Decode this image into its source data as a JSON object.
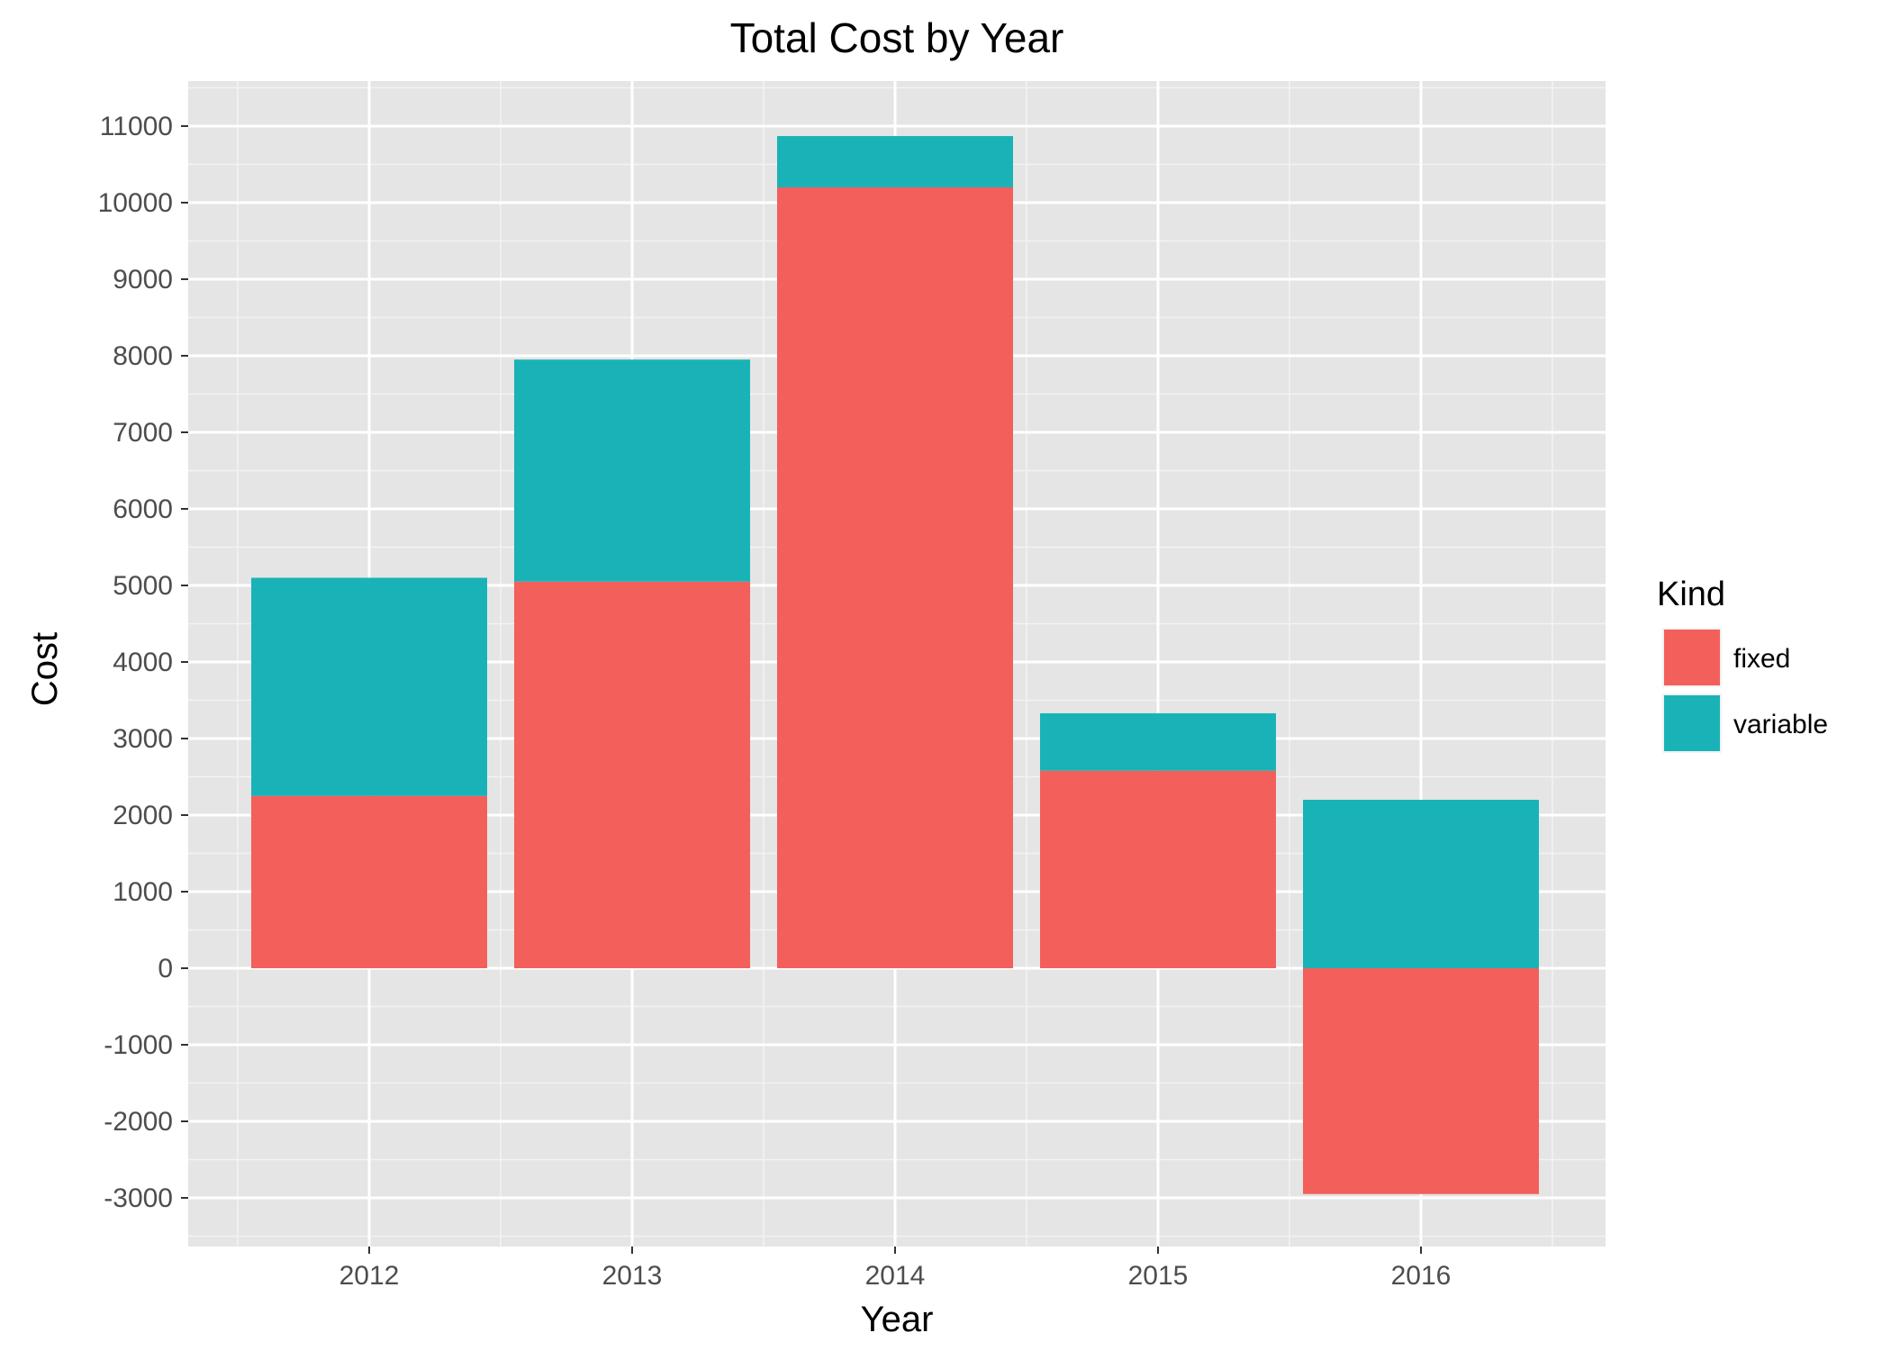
{
  "chart_data": {
    "type": "bar",
    "stacked": true,
    "title": "Total Cost by Year",
    "xlabel": "Year",
    "ylabel": "Cost",
    "categories": [
      "2012",
      "2013",
      "2014",
      "2015",
      "2016"
    ],
    "series": [
      {
        "name": "fixed",
        "color": "#F35F5B",
        "values": [
          2250,
          5050,
          10200,
          2580,
          -2950
        ]
      },
      {
        "name": "variable",
        "color": "#19B3B7",
        "values": [
          2850,
          2900,
          670,
          750,
          2200
        ]
      }
    ],
    "ylim": [
      -3000,
      11000
    ],
    "y_ticks": [
      "11000",
      "10000",
      "9000",
      "8000",
      "7000",
      "6000",
      "5000",
      "4000",
      "3000",
      "2000",
      "1000",
      "0",
      "-1000",
      "-2000",
      "-3000"
    ],
    "grid": true,
    "legend": {
      "title": "Kind",
      "position": "right"
    }
  },
  "colors": {
    "panel_background": "#E5E5E5",
    "grid": "#FFFFFF",
    "fixed": "#F35F5B",
    "variable": "#19B3B7"
  }
}
